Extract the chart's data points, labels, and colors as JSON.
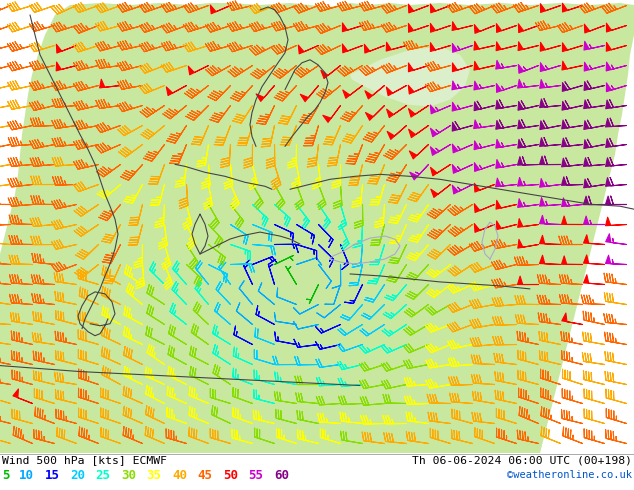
{
  "title_left": "Wind 500 hPa [kts] ECMWF",
  "title_right": "Th 06-06-2024 06:00 UTC (00+198)",
  "copyright": "©weatheronline.co.uk",
  "legend_values": [
    5,
    10,
    15,
    20,
    25,
    30,
    35,
    40,
    45,
    50,
    55,
    60
  ],
  "legend_colors": [
    "#00bb00",
    "#00aaff",
    "#0000ff",
    "#00ccff",
    "#00ffcc",
    "#88dd00",
    "#ffff00",
    "#ffaa00",
    "#ff6600",
    "#ff0000",
    "#cc00cc",
    "#880088"
  ],
  "bg_color": "#ffffff",
  "ocean_color": "#e8e8ee",
  "land_color": "#c8e8a0",
  "land_color2": "#d8f0b0",
  "border_color": "#444444",
  "bottom_bar_color": "#ffffff"
}
